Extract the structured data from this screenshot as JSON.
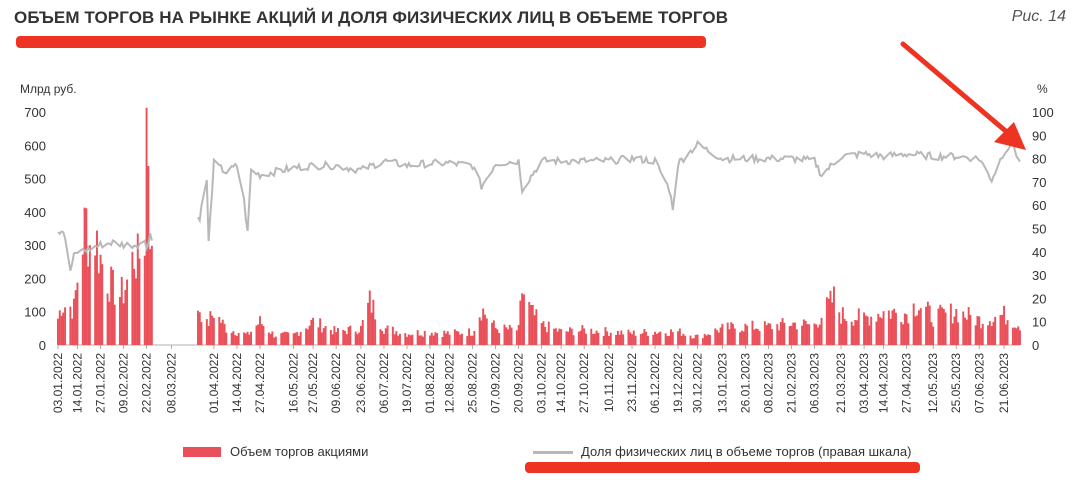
{
  "header": {
    "title": "ОБЪЕМ ТОРГОВ НА РЫНКЕ АКЦИЙ И ДОЛЯ ФИЗИЧЕСКИХ ЛИЦ В ОБЪЕМЕ ТОРГОВ",
    "figure_label": "Рис. 14"
  },
  "colors": {
    "bars": "#e9505a",
    "line": "#b8b8b8",
    "highlight": "#ee3322",
    "text": "#333333"
  },
  "chart_data": {
    "type": "bar",
    "left_axis_unit": "Млрд руб.",
    "right_axis_unit": "%",
    "ylim_left": [
      0,
      700
    ],
    "ylim_right": [
      0,
      100
    ],
    "left_ticks": [
      "0",
      "100",
      "200",
      "300",
      "400",
      "500",
      "600",
      "700"
    ],
    "right_ticks": [
      "0",
      "10",
      "20",
      "30",
      "40",
      "50",
      "60",
      "70",
      "80",
      "90",
      "100"
    ],
    "x_range": [
      "03.01.2022",
      "30.06.2023"
    ],
    "trading_gap": [
      "25.02.2022",
      "23.03.2022"
    ],
    "categories": [
      "03.01.2022",
      "14.01.2022",
      "27.01.2022",
      "09.02.2022",
      "22.02.2022",
      "08.03.2022",
      "01.04.2022",
      "14.04.2022",
      "27.04.2022",
      "16.05.2022",
      "27.05.2022",
      "09.06.2022",
      "23.06.2022",
      "06.07.2022",
      "19.07.2022",
      "01.08.2022",
      "12.08.2022",
      "25.08.2022",
      "07.09.2022",
      "20.09.2022",
      "03.10.2022",
      "14.10.2022",
      "27.10.2022",
      "10.11.2022",
      "23.11.2022",
      "06.12.2022",
      "19.12.2022",
      "30.12.2022",
      "13.01.2023",
      "26.01.2023",
      "08.02.2023",
      "21.02.2023",
      "06.03.2023",
      "21.03.2023",
      "03.04.2023",
      "14.04.2023",
      "27.04.2023",
      "12.05.2023",
      "25.05.2023",
      "07.06.2023",
      "21.06.2023"
    ],
    "series": [
      {
        "name": "Объем торгов акциями",
        "axis": "left",
        "points": [
          [
            "03.01.2022",
            80
          ],
          [
            "05.01.2022",
            120
          ],
          [
            "10.01.2022",
            115
          ],
          [
            "12.01.2022",
            110
          ],
          [
            "14.01.2022",
            200
          ],
          [
            "17.01.2022",
            320
          ],
          [
            "19.01.2022",
            370
          ],
          [
            "21.01.2022",
            300
          ],
          [
            "24.01.2022",
            330
          ],
          [
            "27.01.2022",
            260
          ],
          [
            "31.01.2022",
            200
          ],
          [
            "03.02.2022",
            170
          ],
          [
            "07.02.2022",
            150
          ],
          [
            "09.02.2022",
            160
          ],
          [
            "11.02.2022",
            190
          ],
          [
            "15.02.2022",
            270
          ],
          [
            "17.02.2022",
            250
          ],
          [
            "21.02.2022",
            330
          ],
          [
            "22.02.2022",
            690
          ],
          [
            "23.02.2022",
            610
          ],
          [
            "24.02.2022",
            380
          ],
          [
            "25.02.2022",
            250
          ],
          [
            "24.03.2022",
            110
          ],
          [
            "28.03.2022",
            60
          ],
          [
            "01.04.2022",
            100
          ],
          [
            "08.04.2022",
            50
          ],
          [
            "14.04.2022",
            40
          ],
          [
            "20.04.2022",
            30
          ],
          [
            "27.04.2022",
            70
          ],
          [
            "05.05.2022",
            30
          ],
          [
            "16.05.2022",
            30
          ],
          [
            "27.05.2022",
            70
          ],
          [
            "09.06.2022",
            40
          ],
          [
            "23.06.2022",
            50
          ],
          [
            "28.06.2022",
            130
          ],
          [
            "06.07.2022",
            50
          ],
          [
            "19.07.2022",
            35
          ],
          [
            "01.08.2022",
            40
          ],
          [
            "12.08.2022",
            35
          ],
          [
            "25.08.2022",
            40
          ],
          [
            "30.08.2022",
            110
          ],
          [
            "07.09.2022",
            50
          ],
          [
            "20.09.2022",
            45
          ],
          [
            "22.09.2022",
            165
          ],
          [
            "27.09.2022",
            100
          ],
          [
            "03.10.2022",
            60
          ],
          [
            "14.10.2022",
            40
          ],
          [
            "27.10.2022",
            45
          ],
          [
            "10.11.2022",
            40
          ],
          [
            "23.11.2022",
            35
          ],
          [
            "06.12.2022",
            40
          ],
          [
            "19.12.2022",
            40
          ],
          [
            "30.12.2022",
            25
          ],
          [
            "13.01.2023",
            50
          ],
          [
            "26.01.2023",
            55
          ],
          [
            "08.02.2023",
            55
          ],
          [
            "21.02.2023",
            65
          ],
          [
            "06.03.2023",
            60
          ],
          [
            "17.03.2023",
            140
          ],
          [
            "21.03.2023",
            90
          ],
          [
            "03.04.2023",
            80
          ],
          [
            "14.04.2023",
            100
          ],
          [
            "27.04.2023",
            95
          ],
          [
            "03.05.2023",
            125
          ],
          [
            "12.05.2023",
            85
          ],
          [
            "25.05.2023",
            100
          ],
          [
            "07.06.2023",
            75
          ],
          [
            "21.06.2023",
            90
          ],
          [
            "30.06.2023",
            60
          ]
        ]
      },
      {
        "name": "Доля физических лиц в объеме торгов (правая шкала)",
        "axis": "right",
        "points": [
          [
            "03.01.2022",
            49
          ],
          [
            "06.01.2022",
            49
          ],
          [
            "10.01.2022",
            32
          ],
          [
            "12.01.2022",
            38
          ],
          [
            "14.01.2022",
            40
          ],
          [
            "20.01.2022",
            41
          ],
          [
            "27.01.2022",
            43
          ],
          [
            "03.02.2022",
            44
          ],
          [
            "09.02.2022",
            43
          ],
          [
            "15.02.2022",
            43
          ],
          [
            "21.02.2022",
            44
          ],
          [
            "22.02.2022",
            42
          ],
          [
            "24.02.2022",
            48
          ],
          [
            "25.02.2022",
            45
          ],
          [
            "24.03.2022",
            55
          ],
          [
            "28.03.2022",
            71
          ],
          [
            "29.03.2022",
            44
          ],
          [
            "01.04.2022",
            78
          ],
          [
            "08.04.2022",
            74
          ],
          [
            "14.04.2022",
            77
          ],
          [
            "18.04.2022",
            62
          ],
          [
            "20.04.2022",
            48
          ],
          [
            "22.04.2022",
            75
          ],
          [
            "27.04.2022",
            73
          ],
          [
            "16.05.2022",
            76
          ],
          [
            "27.05.2022",
            77
          ],
          [
            "09.06.2022",
            77
          ],
          [
            "23.06.2022",
            75
          ],
          [
            "06.07.2022",
            79
          ],
          [
            "19.07.2022",
            77
          ],
          [
            "01.08.2022",
            78
          ],
          [
            "12.08.2022",
            78
          ],
          [
            "25.08.2022",
            77
          ],
          [
            "30.08.2022",
            68
          ],
          [
            "07.09.2022",
            78
          ],
          [
            "20.09.2022",
            79
          ],
          [
            "22.09.2022",
            67
          ],
          [
            "03.10.2022",
            79
          ],
          [
            "14.10.2022",
            79
          ],
          [
            "27.10.2022",
            79
          ],
          [
            "10.11.2022",
            79
          ],
          [
            "23.11.2022",
            80
          ],
          [
            "06.12.2022",
            79
          ],
          [
            "14.12.2022",
            67
          ],
          [
            "16.12.2022",
            59
          ],
          [
            "19.12.2022",
            78
          ],
          [
            "30.12.2022",
            86
          ],
          [
            "13.01.2023",
            80
          ],
          [
            "26.01.2023",
            80
          ],
          [
            "08.02.2023",
            80
          ],
          [
            "21.02.2023",
            80
          ],
          [
            "06.03.2023",
            79
          ],
          [
            "10.03.2023",
            73
          ],
          [
            "21.03.2023",
            81
          ],
          [
            "03.04.2023",
            82
          ],
          [
            "14.04.2023",
            81
          ],
          [
            "27.04.2023",
            82
          ],
          [
            "12.05.2023",
            81
          ],
          [
            "25.05.2023",
            81
          ],
          [
            "07.06.2023",
            80
          ],
          [
            "14.06.2023",
            71
          ],
          [
            "21.06.2023",
            83
          ],
          [
            "26.06.2023",
            86
          ],
          [
            "30.06.2023",
            78
          ]
        ]
      }
    ],
    "legend_placement": "bottom",
    "grid": false
  }
}
